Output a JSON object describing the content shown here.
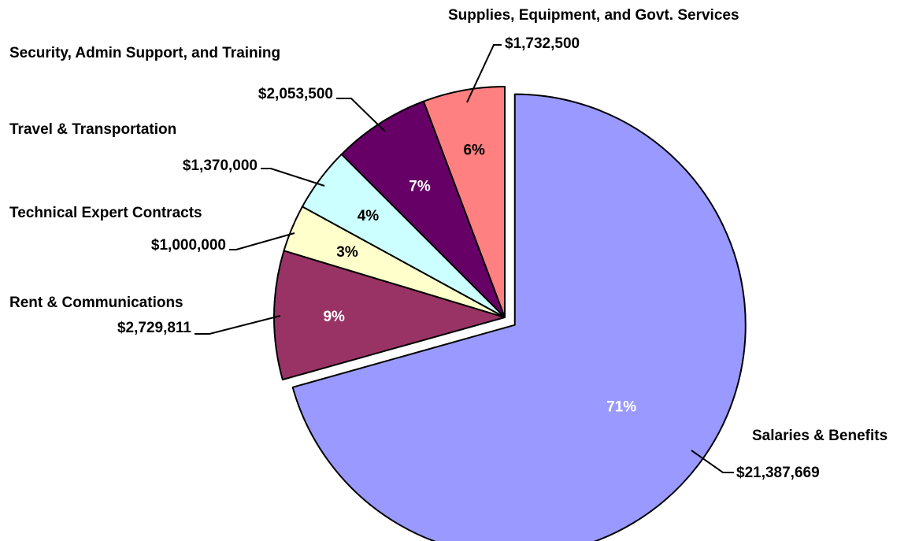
{
  "chart_data": {
    "type": "pie",
    "title": "",
    "slices": [
      {
        "name": "Salaries & Benefits",
        "value": 21387669,
        "value_label": "$21,387,669",
        "percent_label": "71%",
        "color": "#9999FF",
        "pct_color": "#FFFFFF",
        "exploded": true
      },
      {
        "name": "Rent & Communications",
        "value": 2729811,
        "value_label": "$2,729,811",
        "percent_label": "9%",
        "color": "#993366",
        "pct_color": "#FFFFFF",
        "exploded": false
      },
      {
        "name": "Technical Expert Contracts",
        "value": 1000000,
        "value_label": "$1,000,000",
        "percent_label": "3%",
        "color": "#FFFFCC",
        "pct_color": "#000000",
        "exploded": false
      },
      {
        "name": "Travel & Transportation",
        "value": 1370000,
        "value_label": "$1,370,000",
        "percent_label": "4%",
        "color": "#CCFFFF",
        "pct_color": "#000000",
        "exploded": false
      },
      {
        "name": "Security, Admin Support, and Training",
        "value": 2053500,
        "value_label": "$2,053,500",
        "percent_label": "7%",
        "color": "#660066",
        "pct_color": "#FFFFFF",
        "exploded": false
      },
      {
        "name": "Supplies, Equipment, and Govt. Services",
        "value": 1732500,
        "value_label": "$1,732,500",
        "percent_label": "6%",
        "color": "#FF8080",
        "pct_color": "#000000",
        "exploded": false
      }
    ],
    "start_angle_deg": 0,
    "direction": "clockwise",
    "legend": "none",
    "grid": false
  }
}
